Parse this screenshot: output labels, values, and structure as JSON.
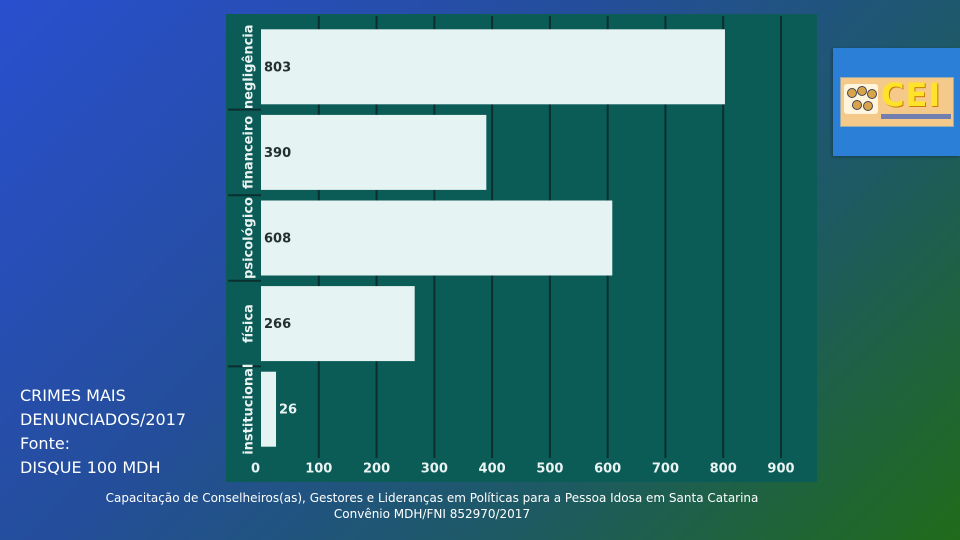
{
  "caption": {
    "line1": "CRIMES MAIS",
    "line2": "DENUNCIADOS/2017",
    "line3": "Fonte:",
    "line4": "DISQUE 100 MDH"
  },
  "footer": {
    "line1": "Capacitação de Conselheiros(as), Gestores e Lideranças em Políticas para a Pessoa Idosa em Santa Catarina",
    "line2": "Convênio MDH/FNI 852970/2017"
  },
  "logo": {
    "text": "CEI"
  },
  "colors": {
    "panel": "#0b5b57",
    "bar": "#e5f3f2",
    "grid": "#0a2f2e",
    "label": "#e9f3f2",
    "value": "#24302f",
    "value_outside": "#e9f3f2"
  },
  "chart_data": {
    "type": "bar",
    "orientation": "horizontal",
    "categories": [
      "negligência",
      "financeiro",
      "psicológico",
      "física",
      "institucional"
    ],
    "values": [
      803,
      390,
      608,
      266,
      26
    ],
    "value_labels": [
      "803",
      "390",
      "608",
      "266",
      "26"
    ],
    "xlim": [
      0,
      900
    ],
    "xticks": [
      "0",
      "100",
      "200",
      "300",
      "400",
      "500",
      "600",
      "700",
      "800",
      "900"
    ],
    "grid": true,
    "legend": "none"
  }
}
